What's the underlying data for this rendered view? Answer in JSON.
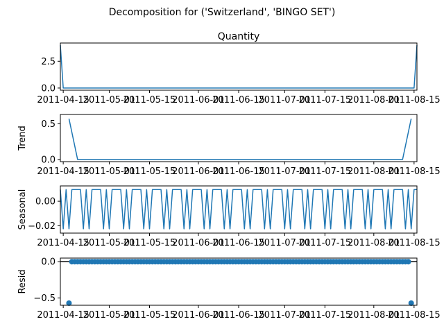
{
  "figure": {
    "suptitle": "Decomposition for ('Switzerland', 'BINGO SET')",
    "panel_title": "Quantity"
  },
  "chart_data": [
    {
      "type": "line",
      "panel": "observed",
      "title": "Quantity",
      "ylabel": "",
      "x_range": [
        "2011-04-14",
        "2011-08-16"
      ],
      "x_ticks": [
        "2011-04-15",
        "2011-05-01",
        "2011-05-15",
        "2011-06-01",
        "2011-06-15",
        "2011-07-01",
        "2011-07-15",
        "2011-08-01",
        "2011-08-15"
      ],
      "y_ticks": [
        "0.0",
        "2.5"
      ],
      "y_tick_values": [
        0.0,
        2.5
      ],
      "ylim": [
        -0.2,
        4.2
      ],
      "color": "#1f77b4",
      "x": [
        "2011-04-14",
        "2011-04-15",
        "2011-08-15",
        "2011-08-16"
      ],
      "y": [
        4,
        0,
        0,
        4
      ]
    },
    {
      "type": "line",
      "panel": "trend",
      "ylabel": "Trend",
      "x_range": [
        "2011-04-14",
        "2011-08-16"
      ],
      "x_ticks": [
        "2011-04-15",
        "2011-05-01",
        "2011-05-15",
        "2011-06-01",
        "2011-06-15",
        "2011-07-01",
        "2011-07-15",
        "2011-08-01",
        "2011-08-15"
      ],
      "y_ticks": [
        "0.0",
        "0.5"
      ],
      "y_tick_values": [
        0.0,
        0.5
      ],
      "ylim": [
        -0.03,
        0.63
      ],
      "color": "#1f77b4",
      "x": [
        "2011-04-17",
        "2011-04-20",
        "2011-08-11",
        "2011-08-14"
      ],
      "y": [
        0.571,
        0,
        0,
        0.571
      ]
    },
    {
      "type": "line",
      "panel": "seasonal",
      "ylabel": "Seasonal",
      "x_range": [
        "2011-04-14",
        "2011-08-16"
      ],
      "x_ticks": [
        "2011-04-15",
        "2011-05-01",
        "2011-05-15",
        "2011-06-01",
        "2011-06-15",
        "2011-07-01",
        "2011-07-15",
        "2011-08-01",
        "2011-08-15"
      ],
      "y_ticks": [
        "0.00",
        "−0.02"
      ],
      "y_tick_values": [
        0.0,
        -0.02
      ],
      "ylim": [
        -0.026,
        0.0125
      ],
      "color": "#1f77b4",
      "period": 7,
      "start": "2011-04-14",
      "end": "2011-08-16",
      "pattern": [
        0.0095,
        -0.0225,
        0.0095,
        -0.0225,
        0.0095,
        0.0095,
        0.0095
      ]
    },
    {
      "type": "scatter",
      "panel": "resid",
      "ylabel": "Resid",
      "x_range": [
        "2011-04-14",
        "2011-08-16"
      ],
      "x_ticks": [
        "2011-04-15",
        "2011-05-01",
        "2011-05-15",
        "2011-06-01",
        "2011-06-15",
        "2011-07-01",
        "2011-07-15",
        "2011-08-01",
        "2011-08-15"
      ],
      "y_ticks": [
        "0.0",
        "−0.5"
      ],
      "y_tick_values": [
        0.0,
        -0.5
      ],
      "ylim": [
        -0.6,
        0.05
      ],
      "color": "#1f77b4",
      "zero_line": true,
      "x_start": "2011-04-17",
      "x_end": "2011-08-14",
      "outliers": [
        {
          "x": "2011-04-17",
          "y": -0.571
        },
        {
          "x": "2011-08-14",
          "y": -0.571
        }
      ],
      "default_y": 0
    }
  ]
}
